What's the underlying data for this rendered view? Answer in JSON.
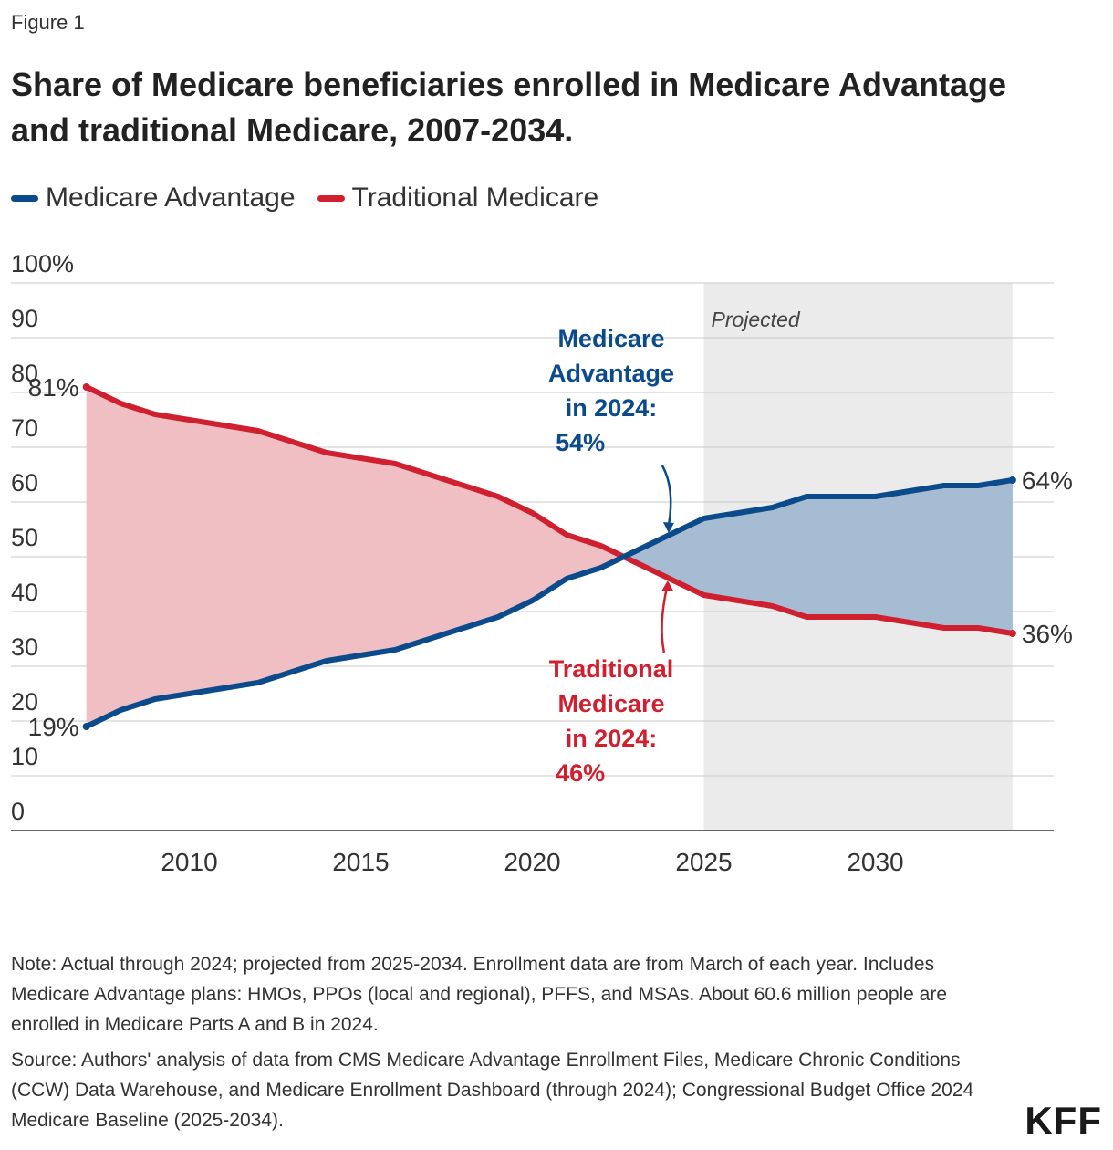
{
  "figure_label": "Figure 1",
  "title": "Share of Medicare beneficiaries enrolled in Medicare Advantage and traditional Medicare, 2007-2034.",
  "colors": {
    "ma": "#0b4a8b",
    "tm": "#d0202f",
    "ma_fill": "#a6bcd3",
    "ma_fill_light": "#b9cfe3",
    "tm_fill": "#efbfc3",
    "projected_bg": "#ebebeb"
  },
  "chart_data": {
    "type": "area",
    "title": "Share of Medicare beneficiaries enrolled in Medicare Advantage and traditional Medicare, 2007-2034.",
    "x": [
      2007,
      2008,
      2009,
      2010,
      2011,
      2012,
      2013,
      2014,
      2015,
      2016,
      2017,
      2018,
      2019,
      2020,
      2021,
      2022,
      2023,
      2024,
      2025,
      2026,
      2027,
      2028,
      2029,
      2030,
      2031,
      2032,
      2033,
      2034
    ],
    "series": [
      {
        "name": "Medicare Advantage",
        "values": [
          19,
          22,
          24,
          25,
          26,
          27,
          29,
          31,
          32,
          33,
          35,
          37,
          39,
          42,
          46,
          48,
          51,
          54,
          57,
          58,
          59,
          61,
          61,
          61,
          62,
          63,
          63,
          64
        ]
      },
      {
        "name": "Traditional Medicare",
        "values": [
          81,
          78,
          76,
          75,
          74,
          73,
          71,
          69,
          68,
          67,
          65,
          63,
          61,
          58,
          54,
          52,
          49,
          46,
          43,
          42,
          41,
          39,
          39,
          39,
          38,
          37,
          37,
          36
        ]
      }
    ],
    "xlim": [
      2004.8,
      2035.2
    ],
    "ylim": [
      0,
      100
    ],
    "yticks": [
      0,
      10,
      20,
      30,
      40,
      50,
      60,
      70,
      80,
      90,
      100
    ],
    "ytick_labels": [
      "0",
      "10",
      "20",
      "30",
      "40",
      "50",
      "60",
      "70",
      "80",
      "90",
      "100%"
    ],
    "xticks": [
      2010,
      2015,
      2020,
      2025,
      2030
    ],
    "xtick_labels": [
      "2010",
      "2015",
      "2020",
      "2025",
      "2030"
    ],
    "projected_range": [
      2025,
      2034
    ],
    "projected_label": "Projected",
    "end_labels": {
      "ma_start": "19%",
      "tm_start": "81%",
      "ma_end": "64%",
      "tm_end": "36%"
    },
    "annotations": {
      "ma": [
        "Medicare",
        "Advantage",
        "in 2024:",
        "54%"
      ],
      "tm": [
        "Traditional",
        "Medicare",
        "in 2024:",
        "46%"
      ]
    },
    "legend": [
      "Medicare Advantage",
      "Traditional Medicare"
    ],
    "legend_position": "top-left",
    "xlabel": "",
    "ylabel": ""
  },
  "notes": {
    "note": "Note: Actual through 2024; projected from 2025-2034. Enrollment data are from March of each year. Includes Medicare Advantage plans: HMOs, PPOs (local and regional), PFFS, and MSAs. About 60.6 million people are enrolled in Medicare Parts A and B in 2024.",
    "source": "Source: Authors' analysis of data from CMS Medicare Advantage Enrollment Files, Medicare Chronic Conditions (CCW) Data Warehouse, and Medicare Enrollment Dashboard (through 2024); Congressional Budget Office 2024 Medicare Baseline (2025-2034)."
  },
  "logo": "KFF"
}
